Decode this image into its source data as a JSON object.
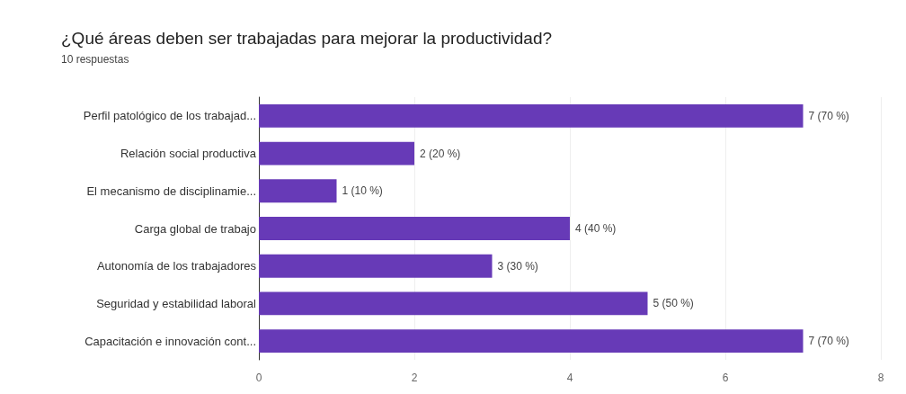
{
  "chart_data": {
    "type": "bar",
    "orientation": "horizontal",
    "title": "¿Qué áreas deben ser trabajadas para mejorar la productividad?",
    "subtitle": "10 respuestas",
    "categories": [
      "Perfil patológico de los trabajad...",
      "Relación social productiva",
      "El mecanismo de disciplinamie...",
      "Carga global de trabajo",
      "Autonomía de los trabajadores",
      "Seguridad y estabilidad laboral",
      "Capacitación e innovación cont..."
    ],
    "values": [
      7,
      2,
      1,
      4,
      3,
      5,
      7
    ],
    "value_labels": [
      "7 (70 %)",
      "2 (20 %)",
      "1 (10 %)",
      "4 (40 %)",
      "3 (30 %)",
      "5 (50 %)",
      "7 (70 %)"
    ],
    "color": "#673ab7",
    "xlim": [
      0,
      8
    ],
    "xticks": [
      0,
      2,
      4,
      6,
      8
    ],
    "grid": "x"
  }
}
